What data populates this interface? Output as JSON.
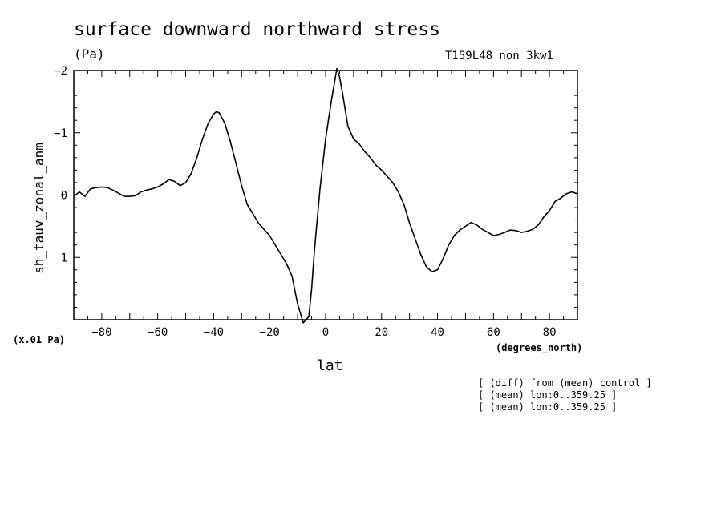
{
  "header": {
    "title": "surface downward northward stress",
    "units": "(Pa)",
    "run_name": "T159L48_non_3kw1"
  },
  "footnotes": {
    "scale": "(x.01 Pa)",
    "x_units": "(degrees_north)",
    "notes": [
      "[ (diff) from (mean) control ]",
      "[ (mean) lon:0..359.25 ]",
      "[ (mean) lon:0..359.25 ]"
    ]
  },
  "chart_data": {
    "type": "line",
    "title": "surface downward northward stress",
    "xlabel": "lat",
    "ylabel": "sh_tauv_zonal_anm",
    "xlim": [
      -90,
      90
    ],
    "ylim": [
      2,
      -2
    ],
    "y_axis_inverted": true,
    "grid": false,
    "xticks": [
      -80,
      -60,
      -40,
      -20,
      0,
      20,
      40,
      60,
      80
    ],
    "xtick_labels": [
      "-80",
      "-60",
      "-40",
      "-20",
      "0",
      "20",
      "40",
      "60",
      "80"
    ],
    "yticks": [
      -2,
      -1,
      0,
      1
    ],
    "ytick_labels": [
      "-2",
      "-1",
      "0",
      "1"
    ],
    "series": [
      {
        "color": "#000000",
        "x": [
          -90,
          -88,
          -86,
          -84,
          -82,
          -80,
          -78,
          -76,
          -74,
          -72,
          -70,
          -68,
          -66,
          -64,
          -62,
          -60,
          -58,
          -56,
          -54,
          -52,
          -50,
          -48,
          -46,
          -44,
          -42,
          -40,
          -39,
          -38,
          -36,
          -34,
          -32,
          -30,
          -28,
          -26,
          -24,
          -22,
          -20,
          -18,
          -16,
          -14,
          -12,
          -10,
          -8,
          -6,
          -5,
          -4,
          -2,
          0,
          2,
          4,
          5,
          6,
          8,
          10,
          12,
          14,
          16,
          18,
          20,
          22,
          24,
          26,
          28,
          30,
          32,
          34,
          36,
          38,
          40,
          42,
          44,
          46,
          48,
          50,
          52,
          54,
          56,
          58,
          60,
          62,
          64,
          66,
          68,
          70,
          72,
          74,
          76,
          78,
          80,
          82,
          84,
          86,
          88,
          90
        ],
        "values": [
          0.02,
          -0.05,
          0.02,
          -0.1,
          -0.12,
          -0.13,
          -0.12,
          -0.08,
          -0.03,
          0.02,
          0.02,
          0.01,
          -0.05,
          -0.08,
          -0.1,
          -0.13,
          -0.18,
          -0.25,
          -0.22,
          -0.15,
          -0.2,
          -0.35,
          -0.6,
          -0.9,
          -1.15,
          -1.3,
          -1.34,
          -1.32,
          -1.15,
          -0.85,
          -0.5,
          -0.15,
          0.15,
          0.3,
          0.45,
          0.55,
          0.65,
          0.8,
          0.95,
          1.1,
          1.3,
          1.75,
          2.05,
          1.95,
          1.5,
          0.9,
          -0.1,
          -0.9,
          -1.5,
          -2.03,
          -1.9,
          -1.65,
          -1.1,
          -0.9,
          -0.82,
          -0.7,
          -0.6,
          -0.48,
          -0.4,
          -0.3,
          -0.2,
          -0.05,
          0.15,
          0.45,
          0.7,
          0.95,
          1.15,
          1.23,
          1.2,
          1.02,
          0.8,
          0.65,
          0.56,
          0.5,
          0.44,
          0.48,
          0.55,
          0.6,
          0.65,
          0.63,
          0.6,
          0.56,
          0.57,
          0.6,
          0.58,
          0.55,
          0.48,
          0.35,
          0.25,
          0.1,
          0.05,
          -0.02,
          -0.05,
          -0.02
        ]
      }
    ]
  }
}
